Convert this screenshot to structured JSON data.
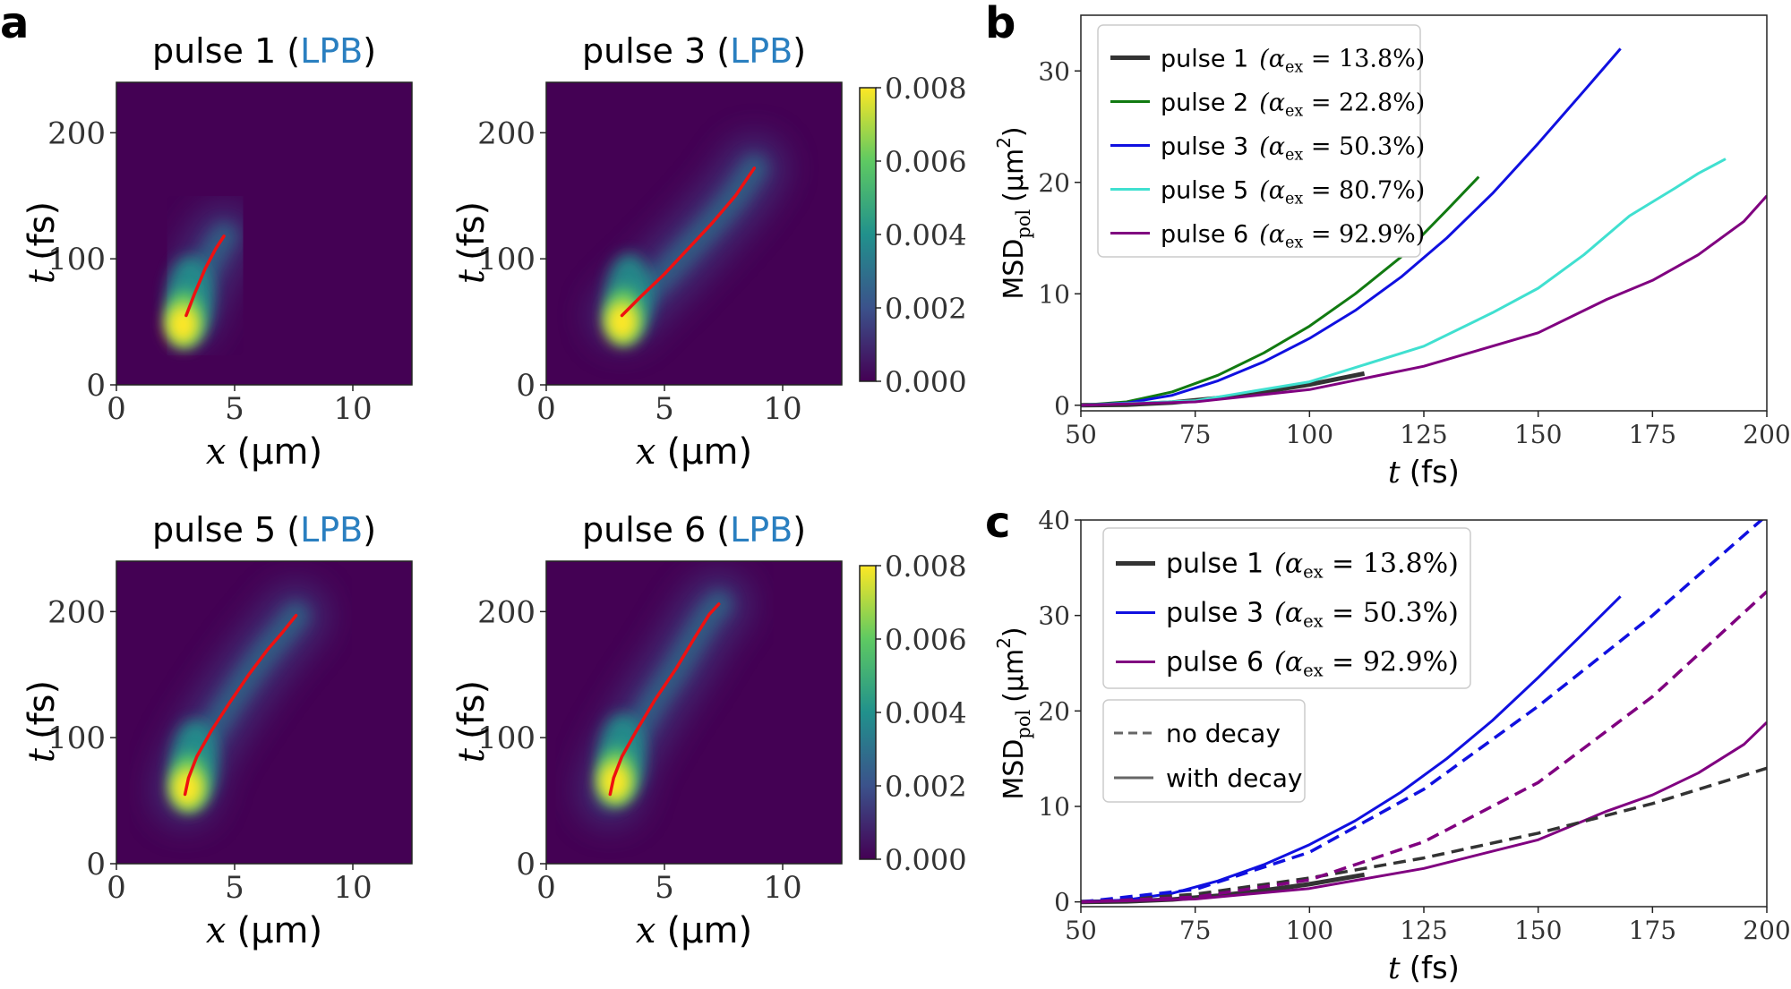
{
  "chart_data": {
    "panel_labels": {
      "a": "a",
      "b": "b",
      "c": "c"
    },
    "heatmaps": [
      {
        "title_prefix": "pulse 1 (",
        "title_highlight": "LPB",
        "title_suffix": ")",
        "xlabel_var": "x",
        "xlabel_unit": "(µm)",
        "ylabel_var": "t",
        "ylabel_unit": "(fs)",
        "xlim": [
          0,
          12.5
        ],
        "xticks": [
          0,
          5,
          10
        ],
        "ylim": [
          0,
          240
        ],
        "yticks": [
          0,
          100,
          200
        ],
        "blob": [
          2.8,
          48
        ],
        "trajectory": [
          [
            2.95,
            55
          ],
          [
            3.3,
            72
          ],
          [
            3.75,
            92
          ],
          [
            4.2,
            108
          ],
          [
            4.55,
            118
          ]
        ]
      },
      {
        "title_prefix": "pulse 3 (",
        "title_highlight": "LPB",
        "title_suffix": ")",
        "xlabel_var": "x",
        "xlabel_unit": "(µm)",
        "ylabel_var": "t",
        "ylabel_unit": "(fs)",
        "xlim": [
          0,
          12.5
        ],
        "xticks": [
          0,
          5,
          10
        ],
        "ylim": [
          0,
          240
        ],
        "yticks": [
          0,
          100,
          200
        ],
        "blob": [
          3.2,
          50
        ],
        "trajectory": [
          [
            3.2,
            55
          ],
          [
            4.0,
            70
          ],
          [
            5.0,
            88
          ],
          [
            6.0,
            108
          ],
          [
            7.0,
            128
          ],
          [
            8.0,
            150
          ],
          [
            8.8,
            172
          ]
        ]
      },
      {
        "title_prefix": "pulse 5 (",
        "title_highlight": "LPB",
        "title_suffix": ")",
        "xlabel_var": "x",
        "xlabel_unit": "(µm)",
        "ylabel_var": "t",
        "ylabel_unit": "(fs)",
        "xlim": [
          0,
          12.5
        ],
        "xticks": [
          0,
          5,
          10
        ],
        "ylim": [
          0,
          240
        ],
        "yticks": [
          0,
          100,
          200
        ],
        "blob": [
          3.0,
          60
        ],
        "trajectory": [
          [
            2.9,
            55
          ],
          [
            3.05,
            68
          ],
          [
            3.4,
            85
          ],
          [
            4.0,
            105
          ],
          [
            4.8,
            128
          ],
          [
            5.6,
            150
          ],
          [
            6.4,
            170
          ],
          [
            7.0,
            183
          ],
          [
            7.6,
            197
          ]
        ]
      },
      {
        "title_prefix": "pulse 6 (",
        "title_highlight": "LPB",
        "title_suffix": ")",
        "xlabel_var": "x",
        "xlabel_unit": "(µm)",
        "ylabel_var": "t",
        "ylabel_unit": "(fs)",
        "xlim": [
          0,
          12.5
        ],
        "xticks": [
          0,
          5,
          10
        ],
        "ylim": [
          0,
          240
        ],
        "yticks": [
          0,
          100,
          200
        ],
        "blob": [
          2.9,
          65
        ],
        "trajectory": [
          [
            2.7,
            55
          ],
          [
            2.85,
            68
          ],
          [
            3.2,
            85
          ],
          [
            3.8,
            105
          ],
          [
            4.6,
            130
          ],
          [
            5.5,
            155
          ],
          [
            6.3,
            180
          ],
          [
            6.9,
            198
          ],
          [
            7.3,
            206
          ]
        ]
      }
    ],
    "colorbar": {
      "ticks": [
        "0.000",
        "0.002",
        "0.004",
        "0.006",
        "0.008"
      ]
    },
    "panel_b": {
      "type": "line",
      "xlabel_var": "t",
      "xlabel_unit": "(fs)",
      "ylabel_main": "MSD",
      "ylabel_sub": "pol",
      "ylabel_unit": "(µm",
      "ylabel_sup": "2",
      "ylabel_close": ")",
      "xlim": [
        50,
        200
      ],
      "ylim": [
        -0.5,
        35
      ],
      "xticks": [
        50,
        75,
        100,
        125,
        150,
        175,
        200
      ],
      "yticks": [
        0,
        10,
        20,
        30
      ],
      "series": [
        {
          "name": "pulse 1",
          "alpha_label": "α",
          "alpha_sub": "ex",
          "alpha_value": " = 13.8%)",
          "color": "#333333",
          "width": 5,
          "x": [
            50,
            60,
            70,
            80,
            90,
            100,
            112
          ],
          "y": [
            0,
            0.05,
            0.25,
            0.65,
            1.2,
            1.85,
            2.85
          ]
        },
        {
          "name": "pulse 2",
          "alpha_label": "α",
          "alpha_sub": "ex",
          "alpha_value": " = 22.8%)",
          "color": "#117a11",
          "width": 3,
          "x": [
            50,
            60,
            70,
            80,
            90,
            100,
            110,
            120,
            130,
            137
          ],
          "y": [
            0,
            0.3,
            1.2,
            2.7,
            4.7,
            7.1,
            10.0,
            13.3,
            17.5,
            20.5
          ]
        },
        {
          "name": "pulse 3",
          "alpha_label": "α",
          "alpha_sub": "ex",
          "alpha_value": " = 50.3%)",
          "color": "#1010e0",
          "width": 3,
          "x": [
            50,
            60,
            70,
            80,
            90,
            100,
            110,
            120,
            130,
            140,
            150,
            160,
            168
          ],
          "y": [
            0,
            0.2,
            0.9,
            2.2,
            3.9,
            6.0,
            8.5,
            11.5,
            15.0,
            19.0,
            23.5,
            28.2,
            32.0
          ]
        },
        {
          "name": "pulse 5",
          "alpha_label": "α",
          "alpha_sub": "ex",
          "alpha_value": " = 80.7%)",
          "color": "#40e0d0",
          "width": 3,
          "x": [
            50,
            75,
            100,
            125,
            140,
            150,
            160,
            170,
            180,
            185,
            191
          ],
          "y": [
            0,
            0.4,
            2.1,
            5.3,
            8.3,
            10.5,
            13.5,
            17.0,
            19.5,
            20.8,
            22.1
          ]
        },
        {
          "name": "pulse 6",
          "alpha_label": "α",
          "alpha_sub": "ex",
          "alpha_value": " = 92.9%)",
          "color": "#800080",
          "width": 3,
          "x": [
            50,
            75,
            100,
            125,
            150,
            165,
            175,
            185,
            195,
            200
          ],
          "y": [
            0,
            0.3,
            1.4,
            3.5,
            6.5,
            9.5,
            11.2,
            13.5,
            16.5,
            18.8
          ]
        }
      ]
    },
    "panel_c": {
      "type": "line",
      "xlabel_var": "t",
      "xlabel_unit": "(fs)",
      "ylabel_main": "MSD",
      "ylabel_sub": "pol",
      "ylabel_unit": "(µm",
      "ylabel_sup": "2",
      "ylabel_close": ")",
      "xlim": [
        50,
        200
      ],
      "ylim": [
        -0.5,
        40
      ],
      "xticks": [
        50,
        75,
        100,
        125,
        150,
        175,
        200
      ],
      "yticks": [
        0,
        10,
        20,
        30,
        40
      ],
      "series": [
        {
          "name": "pulse 1",
          "alpha_label": "α",
          "alpha_sub": "ex",
          "alpha_value": " = 13.8%)",
          "color": "#333333",
          "width": 5,
          "dash": "",
          "x": [
            50,
            60,
            70,
            80,
            90,
            100,
            112
          ],
          "y": [
            0,
            0.05,
            0.25,
            0.65,
            1.2,
            1.85,
            2.85
          ]
        },
        {
          "name": "pulse 3",
          "alpha_label": "α",
          "alpha_sub": "ex",
          "alpha_value": " = 50.3%)",
          "color": "#1010e0",
          "width": 3,
          "dash": "",
          "x": [
            50,
            60,
            70,
            80,
            90,
            100,
            110,
            120,
            130,
            140,
            150,
            160,
            168
          ],
          "y": [
            0,
            0.2,
            0.9,
            2.2,
            3.9,
            6.0,
            8.5,
            11.5,
            15.0,
            19.0,
            23.5,
            28.2,
            32.0
          ]
        },
        {
          "name": "pulse 6",
          "alpha_label": "α",
          "alpha_sub": "ex",
          "alpha_value": " = 92.9%)",
          "color": "#800080",
          "width": 3,
          "dash": "",
          "x": [
            50,
            75,
            100,
            125,
            150,
            165,
            175,
            185,
            195,
            200
          ],
          "y": [
            0,
            0.3,
            1.4,
            3.5,
            6.5,
            9.5,
            11.2,
            13.5,
            16.5,
            18.8
          ]
        },
        {
          "name": "pulse 1 no decay",
          "color": "#333333",
          "width": 3.5,
          "dash": "14 8",
          "x": [
            50,
            75,
            100,
            125,
            150,
            175,
            200
          ],
          "y": [
            0,
            0.8,
            2.5,
            4.6,
            7.2,
            10.3,
            14.0
          ]
        },
        {
          "name": "pulse 3 no decay",
          "color": "#1010e0",
          "width": 3.5,
          "dash": "14 8",
          "x": [
            50,
            75,
            100,
            125,
            150,
            175,
            200
          ],
          "y": [
            0,
            1.3,
            5.2,
            11.8,
            20.5,
            30.0,
            40.5
          ]
        },
        {
          "name": "pulse 6 no decay",
          "color": "#800080",
          "width": 3.5,
          "dash": "14 8",
          "x": [
            50,
            75,
            100,
            125,
            150,
            175,
            200
          ],
          "y": [
            0,
            0.5,
            2.3,
            6.3,
            12.5,
            21.5,
            32.5
          ]
        }
      ],
      "legend_main": [
        0,
        1,
        2
      ],
      "legend_style": [
        {
          "label": "no decay",
          "dash": "10 6"
        },
        {
          "label": "with decay",
          "dash": ""
        }
      ]
    }
  }
}
